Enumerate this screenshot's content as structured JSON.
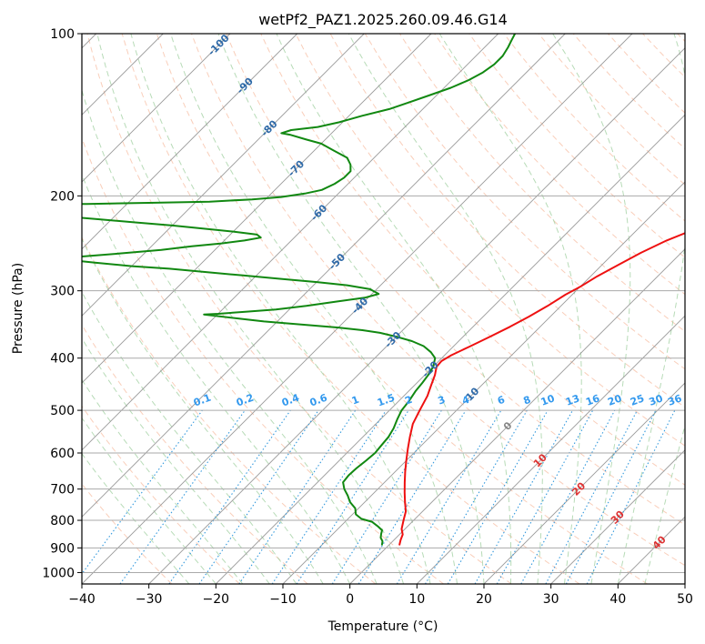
{
  "chart_data": {
    "type": "line",
    "title": "wetPf2_PAZ1.2025.260.09.46.G14",
    "xlabel": "Temperature (°C)",
    "ylabel": "Pressure (hPa)",
    "xlim": [
      -40,
      50
    ],
    "ylim": [
      1050,
      100
    ],
    "y_scale": "log",
    "grid": true,
    "x_ticks": [
      "−40",
      "−30",
      "−20",
      "−10",
      "0",
      "10",
      "20",
      "30",
      "40",
      "50"
    ],
    "y_ticks": [
      "100",
      "200",
      "300",
      "400",
      "500",
      "600",
      "700",
      "800",
      "900",
      "1000"
    ],
    "colors": {
      "temperature": "#ee1111",
      "dewpoint": "#118811",
      "isotherm": "#999999",
      "dry_adiabat": "#f4a582",
      "moist_adiabat": "#99cc99",
      "mixing_ratio": "#3399dd",
      "dry_adiabat_label": "#dd3333",
      "isotherm_label": "#2f6aa8",
      "mixing_label": "#3399ee",
      "freezing_label": "#888888"
    },
    "series": [
      {
        "key": "temperature",
        "points": [
          [
            1.6,
            890
          ],
          [
            1.0,
            870
          ],
          [
            0.5,
            850
          ],
          [
            -0.5,
            830
          ],
          [
            -1.5,
            800
          ],
          [
            -2.5,
            770
          ],
          [
            -4,
            740
          ],
          [
            -5.5,
            710
          ],
          [
            -7,
            680
          ],
          [
            -8.5,
            650
          ],
          [
            -10,
            620
          ],
          [
            -11.5,
            590
          ],
          [
            -13,
            560
          ],
          [
            -14.5,
            530
          ],
          [
            -15.5,
            500
          ],
          [
            -16.5,
            470
          ],
          [
            -17.5,
            450
          ],
          [
            -18.5,
            430
          ],
          [
            -19.5,
            415
          ],
          [
            -19.6,
            405
          ],
          [
            -19,
            395
          ],
          [
            -17.5,
            380
          ],
          [
            -16,
            365
          ],
          [
            -14.5,
            350
          ],
          [
            -13.2,
            335
          ],
          [
            -12,
            320
          ],
          [
            -11,
            305
          ],
          [
            -10,
            295
          ],
          [
            -9,
            282
          ],
          [
            -7.5,
            268
          ],
          [
            -6,
            255
          ],
          [
            -4,
            242
          ],
          [
            -2,
            233
          ],
          [
            0,
            226
          ],
          [
            2,
            220
          ],
          [
            4,
            214
          ],
          [
            6,
            207
          ],
          [
            8,
            200
          ],
          [
            10.5,
            190
          ],
          [
            13,
            180
          ],
          [
            15.5,
            172
          ],
          [
            18.5,
            166
          ],
          [
            21,
            162
          ],
          [
            24,
            157
          ],
          [
            26,
            152
          ],
          [
            28,
            146
          ],
          [
            30,
            140
          ],
          [
            32,
            134
          ],
          [
            34,
            127
          ],
          [
            36,
            120
          ],
          [
            38,
            113
          ],
          [
            40,
            107
          ],
          [
            42,
            100
          ]
        ]
      },
      {
        "key": "dewpoint",
        "points": [
          [
            -1,
            890
          ],
          [
            -1.5,
            875
          ],
          [
            -2.3,
            862
          ],
          [
            -2.8,
            848
          ],
          [
            -3.2,
            835
          ],
          [
            -4.5,
            820
          ],
          [
            -6,
            805
          ],
          [
            -8,
            795
          ],
          [
            -9.5,
            780
          ],
          [
            -10.5,
            760
          ],
          [
            -12.2,
            740
          ],
          [
            -13.5,
            720
          ],
          [
            -15,
            700
          ],
          [
            -16.2,
            680
          ],
          [
            -16.4,
            660
          ],
          [
            -16.3,
            640
          ],
          [
            -16,
            620
          ],
          [
            -15.8,
            600
          ],
          [
            -16,
            580
          ],
          [
            -16.2,
            560
          ],
          [
            -16.7,
            540
          ],
          [
            -17.5,
            520
          ],
          [
            -18.2,
            500
          ],
          [
            -18.5,
            480
          ],
          [
            -19,
            460
          ],
          [
            -19.2,
            445
          ],
          [
            -19.5,
            430
          ],
          [
            -20,
            415
          ],
          [
            -21,
            400
          ],
          [
            -22.5,
            390
          ],
          [
            -24.5,
            380
          ],
          [
            -27,
            372
          ],
          [
            -30,
            365
          ],
          [
            -33,
            359
          ],
          [
            -36,
            355
          ],
          [
            -40,
            351
          ],
          [
            -44,
            348
          ],
          [
            -48,
            345
          ],
          [
            -52,
            342
          ],
          [
            -56,
            338
          ],
          [
            -62,
            332
          ],
          [
            -60,
            331
          ],
          [
            -56,
            328
          ],
          [
            -52,
            325
          ],
          [
            -48,
            320
          ],
          [
            -44,
            314
          ],
          [
            -40.5,
            309
          ],
          [
            -39,
            304
          ],
          [
            -41,
            298
          ],
          [
            -45,
            293
          ],
          [
            -50,
            289
          ],
          [
            -56,
            285
          ],
          [
            -62,
            281
          ],
          [
            -68,
            277
          ],
          [
            -74,
            273
          ],
          [
            -80,
            270
          ],
          [
            -86,
            266
          ],
          [
            -92,
            262
          ],
          [
            -90,
            260
          ],
          [
            -84,
            256
          ],
          [
            -78,
            252
          ],
          [
            -74,
            248
          ],
          [
            -70,
            245
          ],
          [
            -67,
            242
          ],
          [
            -65,
            239
          ],
          [
            -66,
            236
          ],
          [
            -70,
            233
          ],
          [
            -75,
            230
          ],
          [
            -80,
            227
          ],
          [
            -86,
            224
          ],
          [
            -92,
            221
          ],
          [
            -98,
            218
          ],
          [
            -104,
            215
          ],
          [
            -110,
            212
          ],
          [
            -114,
            210
          ],
          [
            -115,
            209
          ],
          [
            -108,
            208
          ],
          [
            -96,
            207
          ],
          [
            -86,
            206
          ],
          [
            -78,
            205
          ],
          [
            -72,
            203
          ],
          [
            -68,
            201
          ],
          [
            -65,
            198
          ],
          [
            -63,
            195
          ],
          [
            -62,
            190
          ],
          [
            -61.5,
            185
          ],
          [
            -61.5,
            180
          ],
          [
            -62.5,
            175
          ],
          [
            -64,
            170
          ],
          [
            -67,
            165
          ],
          [
            -70,
            160
          ],
          [
            -73,
            157
          ],
          [
            -76,
            154
          ],
          [
            -77.5,
            153
          ],
          [
            -76.5,
            151
          ],
          [
            -73,
            149
          ],
          [
            -70.5,
            146
          ],
          [
            -68,
            142
          ],
          [
            -65,
            138
          ],
          [
            -63,
            134
          ],
          [
            -61,
            130
          ],
          [
            -59,
            126
          ],
          [
            -57.5,
            122
          ],
          [
            -56.5,
            118
          ],
          [
            -56,
            114
          ],
          [
            -56,
            110
          ],
          [
            -56.5,
            106
          ],
          [
            -57,
            103
          ],
          [
            -57.5,
            100
          ]
        ]
      }
    ],
    "isotherm_labels": [
      "-100",
      "-90",
      "-80",
      "-70",
      "-60",
      "-50",
      "-40",
      "-30",
      "-20",
      "-10"
    ],
    "freezing_label": "0",
    "dry_adiabat_labels": [
      "10",
      "20",
      "30",
      "40"
    ],
    "mixing_ratio_labels": [
      "0.1",
      "0.2",
      "0.4",
      "0.6",
      "1",
      "1.5",
      "2",
      "3",
      "4",
      "6",
      "8",
      "10",
      "13",
      "16",
      "20",
      "25",
      "30",
      "36"
    ]
  }
}
